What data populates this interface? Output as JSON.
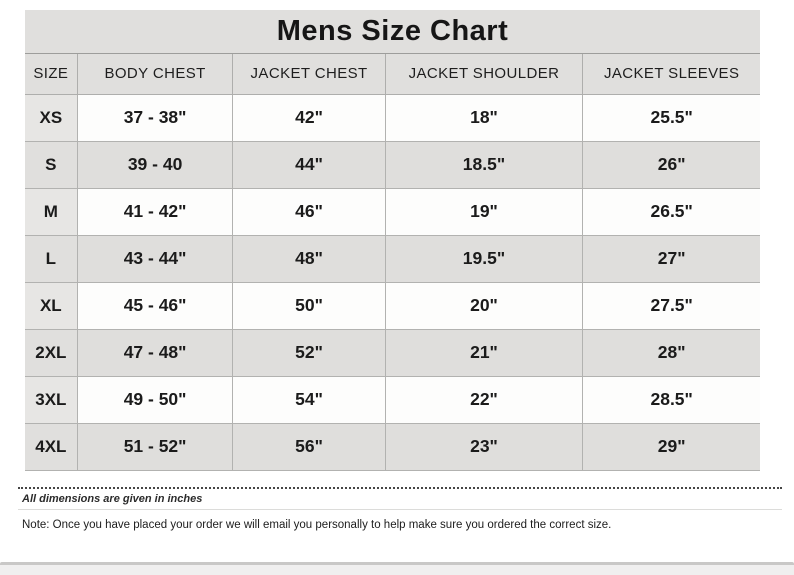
{
  "title": "Mens Size Chart",
  "chart_data": {
    "type": "table",
    "title": "Mens Size Chart",
    "columns": [
      "SIZE",
      "BODY CHEST",
      "JACKET CHEST",
      "JACKET SHOULDER",
      "JACKET SLEEVES"
    ],
    "rows": [
      [
        "XS",
        "37 - 38\"",
        "42\"",
        "18\"",
        "25.5\""
      ],
      [
        "S",
        "39 - 40",
        "44\"",
        "18.5\"",
        "26\""
      ],
      [
        "M",
        "41 - 42\"",
        "46\"",
        "19\"",
        "26.5\""
      ],
      [
        "L",
        "43 - 44\"",
        "48\"",
        "19.5\"",
        "27\""
      ],
      [
        "XL",
        "45 - 46\"",
        "50\"",
        "20\"",
        "27.5\""
      ],
      [
        "2XL",
        "47 - 48\"",
        "52\"",
        "21\"",
        "28\""
      ],
      [
        "3XL",
        "49 - 50\"",
        "54\"",
        "22\"",
        "28.5\""
      ],
      [
        "4XL",
        "51 - 52\"",
        "56\"",
        "23\"",
        "29\""
      ]
    ],
    "units": "inches",
    "layout_hints": {
      "striped_rows": true,
      "grid": true,
      "header_background": "#e0dfdd"
    }
  },
  "footnotes": {
    "dimensions_note": "All dimensions are given in inches",
    "order_note": "Note: Once you have placed your order we will email you personally to help make sure you ordered the correct size."
  },
  "colors": {
    "header_gray": "#e0dfdd",
    "row_gray": "#dfdedc",
    "row_white": "#fdfdfc",
    "grid_border": "#b2b2b0",
    "text_dark": "#1b1b1b",
    "bottom_bar": "#f0efef"
  }
}
